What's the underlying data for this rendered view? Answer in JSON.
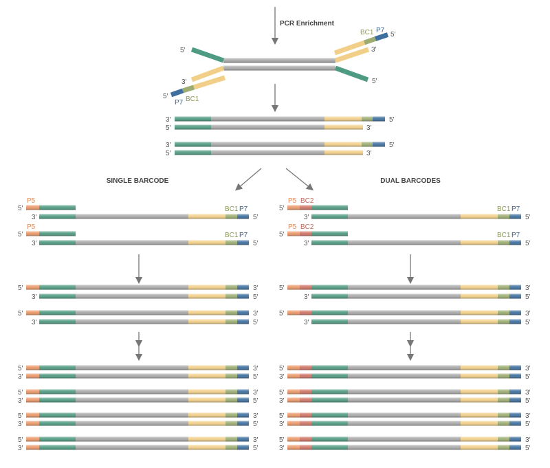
{
  "title": "PCR Enrichment",
  "five_prime": "5′",
  "three_prime": "3′",
  "labels": {
    "p5": "P5",
    "bc1": "BC1",
    "bc2": "BC2",
    "p7": "P7"
  },
  "panels": {
    "single": {
      "heading": "SINGLE BARCODE"
    },
    "dual": {
      "heading": "DUAL BARCODES"
    }
  },
  "colors": {
    "p5": "#eb9868",
    "bc2": "#cf7466",
    "insert_adapter": "#4f9a82",
    "insert": "#a9a9a9",
    "primer": "#f1cf88",
    "bc1": "#9dad72",
    "p7": "#3f6f9e",
    "p5_label": "#e08a58",
    "bc2_label": "#c0675c",
    "bc1_label": "#8a9a58",
    "p7_label": "#3a5f88",
    "arrow": "#777777"
  }
}
